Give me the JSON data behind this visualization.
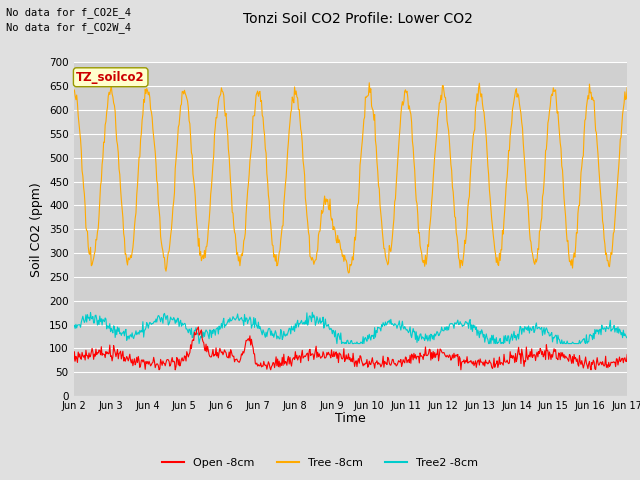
{
  "title": "Tonzi Soil CO2 Profile: Lower CO2",
  "ylabel": "Soil CO2 (ppm)",
  "xlabel": "Time",
  "top_left_text1": "No data for f_CO2E_4",
  "top_left_text2": "No data for f_CO2W_4",
  "annotation_text": "TZ_soilco2",
  "ylim": [
    0,
    700
  ],
  "yticks": [
    0,
    50,
    100,
    150,
    200,
    250,
    300,
    350,
    400,
    450,
    500,
    550,
    600,
    650,
    700
  ],
  "xtick_labels": [
    "Jun 2",
    "Jun 3",
    "Jun 4",
    "Jun 5",
    "Jun 6",
    "Jun 7",
    "Jun 8",
    "Jun 9",
    "Jun 10",
    "Jun 11",
    "Jun 12",
    "Jun 13",
    "Jun 14",
    "Jun 15",
    "Jun 16",
    "Jun 17"
  ],
  "legend_labels": [
    "Open -8cm",
    "Tree -8cm",
    "Tree2 -8cm"
  ],
  "legend_colors": [
    "#ff0000",
    "#ffaa00",
    "#00cccc"
  ],
  "line_colors": {
    "open": "#ff0000",
    "tree": "#ffaa00",
    "tree2": "#00cccc"
  },
  "background_color": "#e0e0e0",
  "plot_bg_color": "#d0d0d0",
  "grid_color": "#ffffff"
}
